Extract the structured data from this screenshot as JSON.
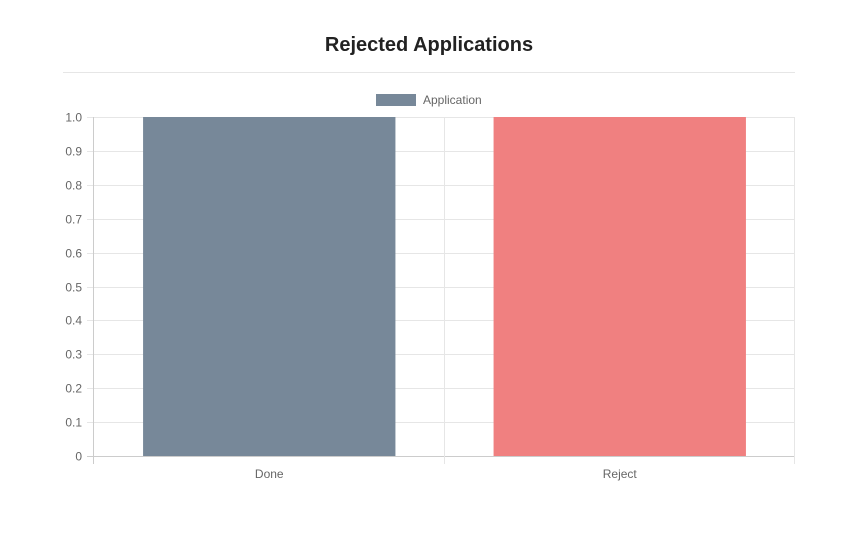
{
  "page": {
    "title": "Rejected Applications"
  },
  "chart_data": {
    "type": "bar",
    "categories": [
      "Done",
      "Reject"
    ],
    "series": [
      {
        "name": "Application",
        "values": [
          1,
          1
        ],
        "colors": [
          "#778899",
          "#f08080"
        ]
      }
    ],
    "legend": {
      "placement": "top",
      "swatch_color": "#778899"
    },
    "ylim": [
      0,
      1
    ],
    "yticks": [
      "0",
      "0.1",
      "0.2",
      "0.3",
      "0.4",
      "0.5",
      "0.6",
      "0.7",
      "0.8",
      "0.9",
      "1.0"
    ],
    "grid": true,
    "colors": {
      "grid": "#e6e6e6",
      "tick_text": "#666666"
    }
  }
}
